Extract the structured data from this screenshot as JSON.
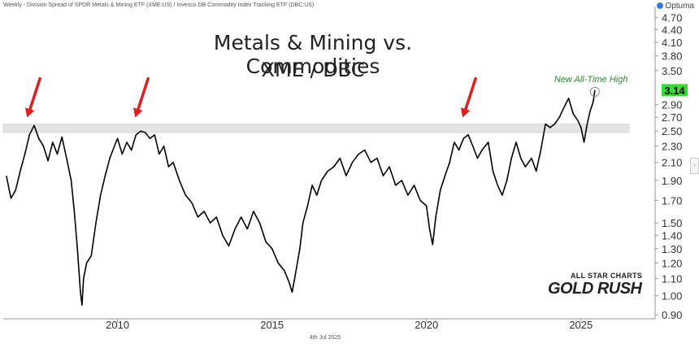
{
  "header": {
    "description": "Weekly - Division Spread of SPDR Metals & Mining ETF (XME:US) / Invesco DB Commodity Index Tracking ETF (DBC:US)",
    "brand": "Optuma"
  },
  "footer": {
    "date": "4th Jul 2025"
  },
  "watermark": {
    "line1": "ALL STAR CHARTS",
    "line2": "GOLD RUSH"
  },
  "colors": {
    "line": "#000000",
    "arrow": "#e02020",
    "last_value_bg": "#33dd33",
    "annotation": "#2a8a2a",
    "band": "#e4e4e4",
    "grid": "#e8e8e8"
  },
  "chart_data": {
    "type": "line",
    "title": "Metals & Mining vs. Commodities",
    "subtitle": "XME / DBC",
    "xlabel": "",
    "ylabel": "",
    "y_scale": "log",
    "xlim": [
      2006.3,
      2027.4
    ],
    "ylim": [
      0.88,
      5.0
    ],
    "x_ticks": [
      2010,
      2015,
      2020,
      2025
    ],
    "x_tick_labels": [
      "2010",
      "2015",
      "2020",
      "2025"
    ],
    "y_ticks": [
      4.7,
      4.4,
      4.1,
      3.8,
      3.5,
      3.14,
      2.9,
      2.7,
      2.5,
      2.3,
      2.1,
      1.9,
      1.7,
      1.5,
      1.4,
      1.3,
      1.2,
      1.1,
      1.0,
      0.9
    ],
    "y_tick_labels": [
      "4.70",
      "4.40",
      "4.10",
      "3.80",
      "3.50",
      "3.14",
      "2.90",
      "2.70",
      "2.50",
      "2.30",
      "2.10",
      "1.90",
      "1.70",
      "1.50",
      "1.40",
      "1.30",
      "1.20",
      "1.10",
      "1.00",
      "0.90"
    ],
    "last_value": {
      "value": 3.14,
      "label": "3.14"
    },
    "resistance_band": [
      2.48,
      2.6
    ],
    "annotation": "New All-Time High",
    "arrows_at_x": [
      2007.2,
      2010.7,
      2021.3
    ],
    "grid": false,
    "series": [
      {
        "values": [
          [
            2006.4,
            1.95
          ],
          [
            2006.55,
            1.72
          ],
          [
            2006.7,
            1.8
          ],
          [
            2006.85,
            2.0
          ],
          [
            2007.0,
            2.2
          ],
          [
            2007.15,
            2.45
          ],
          [
            2007.3,
            2.58
          ],
          [
            2007.45,
            2.4
          ],
          [
            2007.6,
            2.3
          ],
          [
            2007.75,
            2.12
          ],
          [
            2007.9,
            2.35
          ],
          [
            2008.05,
            2.2
          ],
          [
            2008.2,
            2.42
          ],
          [
            2008.35,
            2.15
          ],
          [
            2008.5,
            1.9
          ],
          [
            2008.6,
            1.6
          ],
          [
            2008.7,
            1.3
          ],
          [
            2008.8,
            1.02
          ],
          [
            2008.85,
            0.95
          ],
          [
            2008.9,
            1.1
          ],
          [
            2009.0,
            1.2
          ],
          [
            2009.15,
            1.25
          ],
          [
            2009.3,
            1.5
          ],
          [
            2009.45,
            1.75
          ],
          [
            2009.6,
            1.95
          ],
          [
            2009.75,
            2.15
          ],
          [
            2009.9,
            2.3
          ],
          [
            2010.0,
            2.4
          ],
          [
            2010.15,
            2.2
          ],
          [
            2010.3,
            2.35
          ],
          [
            2010.45,
            2.25
          ],
          [
            2010.6,
            2.45
          ],
          [
            2010.75,
            2.5
          ],
          [
            2010.9,
            2.48
          ],
          [
            2011.05,
            2.4
          ],
          [
            2011.2,
            2.45
          ],
          [
            2011.35,
            2.2
          ],
          [
            2011.5,
            2.3
          ],
          [
            2011.65,
            2.05
          ],
          [
            2011.8,
            2.1
          ],
          [
            2012.0,
            1.9
          ],
          [
            2012.2,
            1.75
          ],
          [
            2012.4,
            1.68
          ],
          [
            2012.6,
            1.55
          ],
          [
            2012.8,
            1.6
          ],
          [
            2013.0,
            1.5
          ],
          [
            2013.2,
            1.55
          ],
          [
            2013.4,
            1.4
          ],
          [
            2013.6,
            1.32
          ],
          [
            2013.8,
            1.45
          ],
          [
            2014.0,
            1.55
          ],
          [
            2014.2,
            1.45
          ],
          [
            2014.4,
            1.6
          ],
          [
            2014.6,
            1.5
          ],
          [
            2014.8,
            1.35
          ],
          [
            2015.0,
            1.3
          ],
          [
            2015.2,
            1.2
          ],
          [
            2015.4,
            1.15
          ],
          [
            2015.55,
            1.08
          ],
          [
            2015.65,
            1.02
          ],
          [
            2015.75,
            1.12
          ],
          [
            2015.9,
            1.3
          ],
          [
            2016.0,
            1.5
          ],
          [
            2016.15,
            1.65
          ],
          [
            2016.3,
            1.85
          ],
          [
            2016.45,
            1.75
          ],
          [
            2016.6,
            1.9
          ],
          [
            2016.8,
            2.0
          ],
          [
            2017.0,
            2.05
          ],
          [
            2017.2,
            2.15
          ],
          [
            2017.4,
            1.95
          ],
          [
            2017.6,
            2.1
          ],
          [
            2017.8,
            2.2
          ],
          [
            2018.0,
            2.25
          ],
          [
            2018.2,
            2.1
          ],
          [
            2018.4,
            2.15
          ],
          [
            2018.6,
            1.95
          ],
          [
            2018.8,
            2.05
          ],
          [
            2019.0,
            1.85
          ],
          [
            2019.2,
            1.9
          ],
          [
            2019.4,
            1.75
          ],
          [
            2019.6,
            1.85
          ],
          [
            2019.8,
            1.7
          ],
          [
            2020.0,
            1.65
          ],
          [
            2020.1,
            1.45
          ],
          [
            2020.2,
            1.33
          ],
          [
            2020.3,
            1.55
          ],
          [
            2020.45,
            1.8
          ],
          [
            2020.6,
            1.95
          ],
          [
            2020.75,
            2.1
          ],
          [
            2020.9,
            2.35
          ],
          [
            2021.05,
            2.25
          ],
          [
            2021.2,
            2.4
          ],
          [
            2021.35,
            2.45
          ],
          [
            2021.5,
            2.3
          ],
          [
            2021.65,
            2.15
          ],
          [
            2021.8,
            2.25
          ],
          [
            2022.0,
            2.35
          ],
          [
            2022.15,
            2.0
          ],
          [
            2022.3,
            1.85
          ],
          [
            2022.45,
            1.75
          ],
          [
            2022.6,
            1.9
          ],
          [
            2022.75,
            2.15
          ],
          [
            2022.9,
            2.35
          ],
          [
            2023.05,
            2.15
          ],
          [
            2023.2,
            2.05
          ],
          [
            2023.4,
            2.15
          ],
          [
            2023.55,
            2.0
          ],
          [
            2023.7,
            2.25
          ],
          [
            2023.85,
            2.6
          ],
          [
            2024.0,
            2.55
          ],
          [
            2024.15,
            2.6
          ],
          [
            2024.3,
            2.7
          ],
          [
            2024.45,
            2.85
          ],
          [
            2024.6,
            3.0
          ],
          [
            2024.75,
            2.75
          ],
          [
            2024.9,
            2.65
          ],
          [
            2025.0,
            2.55
          ],
          [
            2025.1,
            2.35
          ],
          [
            2025.2,
            2.6
          ],
          [
            2025.3,
            2.8
          ],
          [
            2025.4,
            2.95
          ],
          [
            2025.45,
            3.14
          ]
        ]
      }
    ]
  }
}
